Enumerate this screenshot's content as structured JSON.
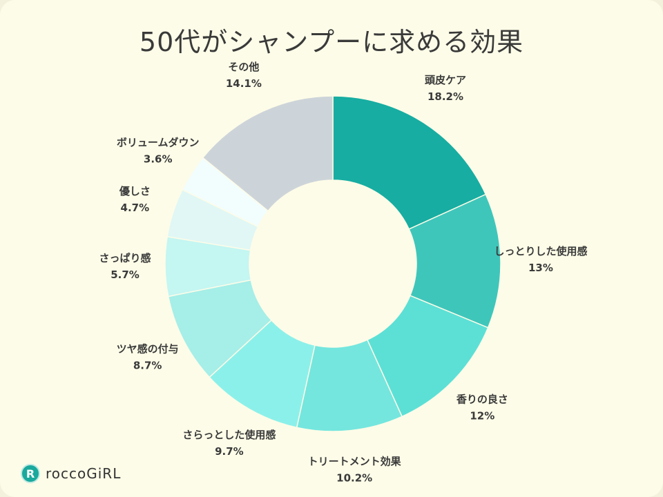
{
  "chart_data": {
    "type": "pie",
    "donut": true,
    "title": "50代がシャンプーに求める効果",
    "start": "top",
    "direction": "clockwise",
    "slices": [
      {
        "label": "頭皮ケア",
        "value": 18.2,
        "display": "18.2%",
        "color": "#17ada2"
      },
      {
        "label": "しっとりした使用感",
        "value": 13,
        "display": "13%",
        "color": "#3fc6bb"
      },
      {
        "label": "香りの良さ",
        "value": 12,
        "display": "12%",
        "color": "#5ce0d6"
      },
      {
        "label": "トリートメント効果",
        "value": 10.2,
        "display": "10.2%",
        "color": "#74e6de"
      },
      {
        "label": "さらっとした使用感",
        "value": 9.7,
        "display": "9.7%",
        "color": "#8cf0ea"
      },
      {
        "label": "ツヤ感の付与",
        "value": 8.7,
        "display": "8.7%",
        "color": "#a6eee8"
      },
      {
        "label": "さっぱり感",
        "value": 5.7,
        "display": "5.7%",
        "color": "#c4f6f2"
      },
      {
        "label": "優しさ",
        "value": 4.7,
        "display": "4.7%",
        "color": "#e0f7f5"
      },
      {
        "label": "ボリュームダウン",
        "value": 3.6,
        "display": "3.6%",
        "color": "#f2fdfd"
      },
      {
        "label": "その他",
        "value": 14.1,
        "display": "14.1%",
        "color": "#cdd4d9"
      }
    ]
  },
  "brand": {
    "mark": "R",
    "name": "roccoGiRL"
  }
}
